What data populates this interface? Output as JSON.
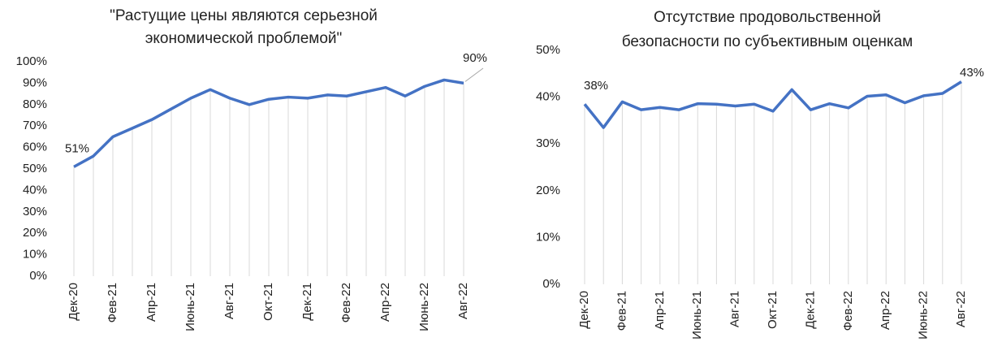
{
  "chart_data": [
    {
      "type": "line",
      "title": [
        "\"Растущие цены являются серьезной",
        "экономической проблемой\""
      ],
      "categories": [
        "Дек-20",
        null,
        "Фев-21",
        null,
        "Апр-21",
        null,
        "Июнь-21",
        null,
        "Авг-21",
        null,
        "Окт-21",
        null,
        "Дек-21",
        null,
        "Фев-22",
        null,
        "Апр-22",
        null,
        "Июнь-22",
        null,
        "Авг-22"
      ],
      "series": [
        {
          "color": "#4472c4",
          "values": [
            51,
            56,
            65,
            69,
            73,
            78,
            83,
            87,
            83,
            80,
            82.5,
            83.5,
            83,
            84.5,
            84,
            86,
            88,
            84,
            88.5,
            91.5,
            90
          ],
          "value_labels": [
            "51%",
            null,
            null,
            null,
            null,
            null,
            null,
            null,
            null,
            null,
            null,
            null,
            null,
            null,
            null,
            null,
            null,
            null,
            null,
            null,
            "90%"
          ]
        }
      ],
      "ylim": [
        0,
        100
      ],
      "yticks": [
        {
          "value": 0,
          "label": "0%"
        },
        {
          "value": 10,
          "label": "10%"
        },
        {
          "value": 20,
          "label": "20%"
        },
        {
          "value": 30,
          "label": "30%"
        },
        {
          "value": 40,
          "label": "40%"
        },
        {
          "value": 50,
          "label": "50%"
        },
        {
          "value": 60,
          "label": "60%"
        },
        {
          "value": 70,
          "label": "70%"
        },
        {
          "value": 80,
          "label": "80%"
        },
        {
          "value": 90,
          "label": "90%"
        },
        {
          "value": 100,
          "label": "100%"
        }
      ],
      "drop_lines": true
    },
    {
      "type": "line",
      "title": [
        "Отсутствие продовольственной",
        "безопасности по субъективным оценкам"
      ],
      "categories": [
        "Дек-20",
        null,
        "Фев-21",
        null,
        "Апр-21",
        null,
        "Июнь-21",
        null,
        "Авг-21",
        null,
        "Окт-21",
        null,
        "Дек-21",
        null,
        "Фев-22",
        null,
        "Апр-22",
        null,
        "Июнь-22",
        null,
        "Авг-22"
      ],
      "series": [
        {
          "color": "#4472c4",
          "values": [
            38.5,
            33.5,
            39,
            37.3,
            37.8,
            37.3,
            38.6,
            38.5,
            38.1,
            38.5,
            37,
            41.6,
            37.3,
            38.6,
            37.7,
            40.2,
            40.5,
            38.8,
            40.3,
            40.8,
            43.3
          ],
          "value_labels": [
            "38%",
            null,
            null,
            null,
            null,
            null,
            null,
            null,
            null,
            null,
            null,
            null,
            null,
            null,
            null,
            null,
            null,
            null,
            null,
            null,
            "43%"
          ]
        }
      ],
      "ylim": [
        0,
        50
      ],
      "yticks": [
        {
          "value": 0,
          "label": "0%"
        },
        {
          "value": 10,
          "label": "10%"
        },
        {
          "value": 20,
          "label": "20%"
        },
        {
          "value": 30,
          "label": "30%"
        },
        {
          "value": 40,
          "label": "40%"
        },
        {
          "value": 50,
          "label": "50%"
        }
      ],
      "drop_lines": true
    }
  ]
}
